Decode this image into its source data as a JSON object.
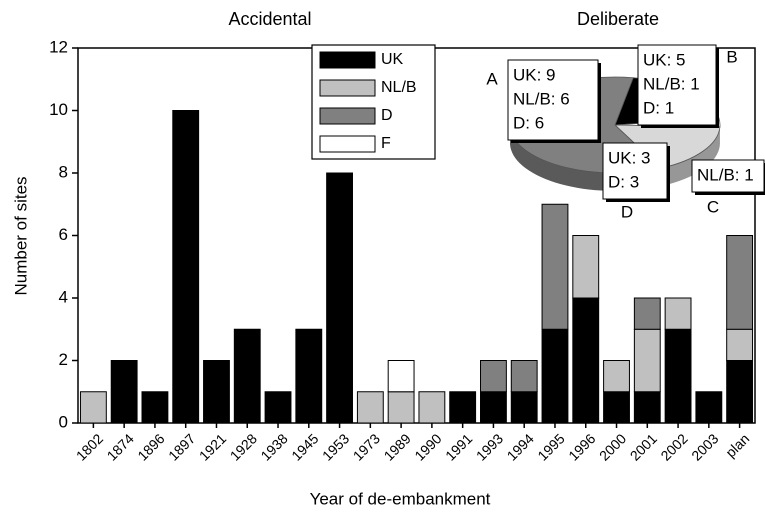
{
  "chart_data": [
    {
      "type": "bar",
      "stacked": true,
      "xlabel": "Year of de-embankment",
      "ylabel": "Number of sites",
      "categories": [
        "1802",
        "1874",
        "1896",
        "1897",
        "1921",
        "1928",
        "1938",
        "1945",
        "1953",
        "1973",
        "1989",
        "1990",
        "1991",
        "1993",
        "1994",
        "1995",
        "1996",
        "2000",
        "2001",
        "2002",
        "2003",
        "plan"
      ],
      "series": [
        {
          "name": "UK",
          "color": "#000000",
          "values": [
            0,
            2,
            1,
            10,
            2,
            3,
            1,
            3,
            8,
            0,
            0,
            0,
            1,
            1,
            1,
            3,
            4,
            1,
            1,
            3,
            1,
            2
          ]
        },
        {
          "name": "NL/B",
          "color": "#c0c0c0",
          "values": [
            1,
            0,
            0,
            0,
            0,
            0,
            0,
            0,
            0,
            1,
            1,
            1,
            0,
            0,
            0,
            0,
            2,
            1,
            2,
            1,
            0,
            1
          ]
        },
        {
          "name": "D",
          "color": "#808080",
          "values": [
            0,
            0,
            0,
            0,
            0,
            0,
            0,
            0,
            0,
            0,
            0,
            0,
            0,
            1,
            1,
            4,
            0,
            0,
            1,
            0,
            0,
            3
          ]
        },
        {
          "name": "F",
          "color": "#ffffff",
          "values": [
            0,
            0,
            0,
            0,
            0,
            0,
            0,
            0,
            0,
            0,
            1,
            0,
            0,
            0,
            0,
            0,
            0,
            0,
            0,
            0,
            0,
            0
          ]
        }
      ],
      "ylim": [
        0,
        12
      ],
      "yticks": [
        0,
        2,
        4,
        6,
        8,
        10,
        12
      ],
      "annotations": [
        "Accidental",
        "Deliberate"
      ]
    },
    {
      "type": "pie",
      "categories": [
        "B",
        "C",
        "D",
        "A"
      ],
      "values": [
        7,
        1,
        6,
        21
      ],
      "colors": [
        "#000000",
        "#ffffff",
        "#d8d8d8",
        "#808080"
      ],
      "callouts": [
        [
          "UK: 5",
          "NL/B: 1",
          "D: 1"
        ],
        [
          "NL/B: 1"
        ],
        [
          "UK: 3",
          "D: 3"
        ],
        [
          "UK: 9",
          "NL/B: 6",
          "D: 6"
        ]
      ]
    }
  ]
}
